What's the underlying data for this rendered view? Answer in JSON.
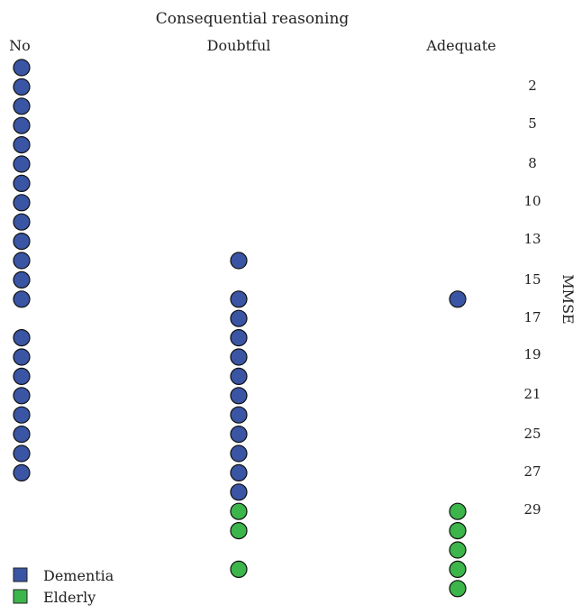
{
  "chart_data": {
    "type": "scatter",
    "title": "Consequential reasoning",
    "categories": [
      "No",
      "Doubtful",
      "Adequate"
    ],
    "ylabel": "MMSE",
    "y_ticks": [
      2,
      5,
      8,
      10,
      13,
      15,
      17,
      19,
      21,
      25,
      27,
      29
    ],
    "legend_position": "bottom-left",
    "series": [
      {
        "name": "Dementia",
        "color": "#3a55a4",
        "points": [
          {
            "category": "No",
            "y": 1
          },
          {
            "category": "No",
            "y": 2
          },
          {
            "category": "No",
            "y": 3
          },
          {
            "category": "No",
            "y": 4
          },
          {
            "category": "No",
            "y": 5
          },
          {
            "category": "No",
            "y": 6
          },
          {
            "category": "No",
            "y": 7
          },
          {
            "category": "No",
            "y": 8
          },
          {
            "category": "No",
            "y": 9
          },
          {
            "category": "No",
            "y": 10
          },
          {
            "category": "No",
            "y": 11
          },
          {
            "category": "No",
            "y": 12
          },
          {
            "category": "No",
            "y": 13
          },
          {
            "category": "No",
            "y": 15
          },
          {
            "category": "No",
            "y": 16
          },
          {
            "category": "No",
            "y": 17
          },
          {
            "category": "No",
            "y": 18
          },
          {
            "category": "No",
            "y": 19
          },
          {
            "category": "No",
            "y": 20
          },
          {
            "category": "No",
            "y": 21
          },
          {
            "category": "No",
            "y": 22
          },
          {
            "category": "Doubtful",
            "y": 11
          },
          {
            "category": "Doubtful",
            "y": 13
          },
          {
            "category": "Doubtful",
            "y": 14
          },
          {
            "category": "Doubtful",
            "y": 15
          },
          {
            "category": "Doubtful",
            "y": 16
          },
          {
            "category": "Doubtful",
            "y": 17
          },
          {
            "category": "Doubtful",
            "y": 18
          },
          {
            "category": "Doubtful",
            "y": 19
          },
          {
            "category": "Doubtful",
            "y": 20
          },
          {
            "category": "Doubtful",
            "y": 21
          },
          {
            "category": "Doubtful",
            "y": 22
          },
          {
            "category": "Doubtful",
            "y": 23
          },
          {
            "category": "Adequate",
            "y": 13
          }
        ]
      },
      {
        "name": "Elderly",
        "color": "#3cb54a",
        "points": [
          {
            "category": "Doubtful",
            "y": 24
          },
          {
            "category": "Doubtful",
            "y": 25
          },
          {
            "category": "Doubtful",
            "y": 27
          },
          {
            "category": "Adequate",
            "y": 24
          },
          {
            "category": "Adequate",
            "y": 25
          },
          {
            "category": "Adequate",
            "y": 26
          },
          {
            "category": "Adequate",
            "y": 27
          },
          {
            "category": "Adequate",
            "y": 28
          }
        ]
      }
    ]
  }
}
